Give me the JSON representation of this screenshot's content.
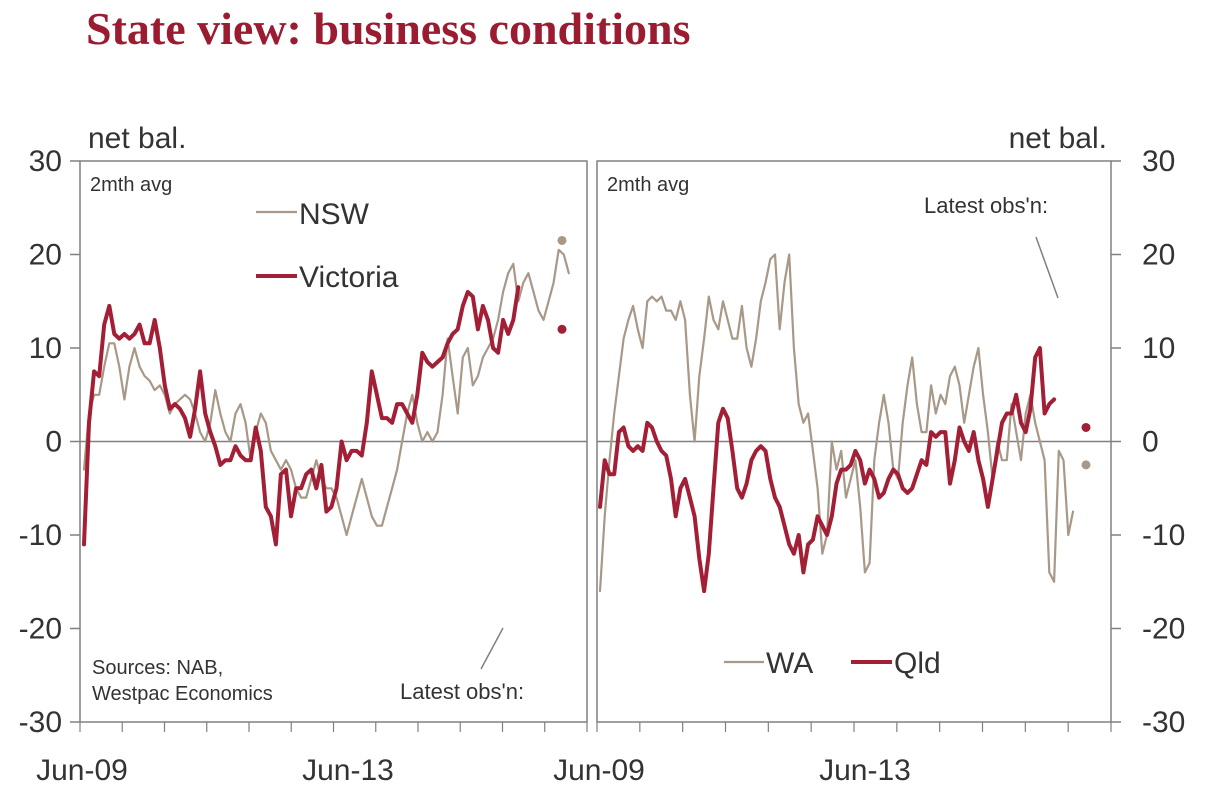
{
  "title": "State view: business conditions",
  "colors": {
    "title": "#9b1b30",
    "vic_qld": "#a31f35",
    "nsw_wa": "#a89888",
    "axis": "#808080",
    "text": "#333333"
  },
  "chart_data": [
    {
      "type": "line",
      "panel": "left",
      "note": "2mth avg",
      "ylabel": "net bal.",
      "ylim": [
        -30,
        30
      ],
      "yticks": [
        "30",
        "20",
        "10",
        "0",
        "-10",
        "-20",
        "-30"
      ],
      "xticks": [
        "Jun-09",
        "Jun-13"
      ],
      "source": "Sources: NAB,\nWestpac Economics",
      "latest_label": "Latest obs'n:",
      "series": [
        {
          "name": "NSW",
          "color": "#a89888",
          "latest": 21.5,
          "values": [
            -3,
            3,
            5,
            5,
            8,
            10.5,
            10.5,
            8,
            4.5,
            8,
            10,
            8,
            7,
            6.5,
            5.5,
            6,
            5,
            3,
            4,
            4.5,
            5,
            4.5,
            3,
            1,
            0,
            2,
            5.5,
            3,
            1,
            0,
            3,
            4,
            2,
            -2,
            1,
            3,
            2,
            -1,
            -2,
            -3,
            -2,
            -3,
            -5,
            -6,
            -6,
            -4,
            -2,
            -4,
            -5,
            -5,
            -6,
            -8,
            -10,
            -8,
            -6,
            -4,
            -6,
            -8,
            -9,
            -9,
            -7,
            -5,
            -3,
            0,
            3,
            5,
            2,
            0,
            1,
            0,
            1,
            5,
            11,
            7,
            3,
            9,
            10,
            6,
            7,
            9,
            10,
            11,
            13,
            16,
            18,
            19,
            15,
            17,
            18,
            16,
            14,
            13,
            15,
            17,
            20.5,
            20,
            18
          ]
        },
        {
          "name": "Victoria",
          "color": "#a31f35",
          "latest": 12,
          "values": [
            -11,
            2,
            7.5,
            7,
            12.5,
            14.5,
            11.5,
            11,
            11.5,
            11,
            11.5,
            12.5,
            10.5,
            10.5,
            13,
            10,
            6,
            3.5,
            4,
            3.5,
            2.5,
            0.5,
            3.5,
            7.5,
            3,
            1,
            -0.5,
            -2.5,
            -2,
            -2,
            -0.5,
            -1.5,
            -2,
            -2,
            1.5,
            -1,
            -7,
            -8,
            -11,
            -3.5,
            -3,
            -8,
            -5,
            -5,
            -3.5,
            -3,
            -5,
            -2.5,
            -7.5,
            -7,
            -5,
            0,
            -2,
            -1,
            -1,
            -1.5,
            2,
            7.5,
            5,
            2.5,
            2.5,
            2,
            4,
            4,
            3,
            2,
            5,
            9.5,
            8.5,
            8,
            8.5,
            9,
            10.5,
            11.5,
            12,
            14.5,
            16,
            15.5,
            12,
            14.5,
            13,
            10,
            9.5,
            13,
            11.5,
            13,
            16.5
          ]
        }
      ]
    },
    {
      "type": "line",
      "panel": "right",
      "note": "2mth avg",
      "ylabel": "net bal.",
      "ylim": [
        -30,
        30
      ],
      "yticks": [
        "30",
        "20",
        "10",
        "0",
        "-10",
        "-20",
        "-30"
      ],
      "xticks": [
        "Jun-09",
        "Jun-13"
      ],
      "latest_label": "Latest obs'n:",
      "series": [
        {
          "name": "WA",
          "color": "#a89888",
          "latest": -2.5,
          "values": [
            -16,
            -8,
            -2,
            3,
            7,
            11,
            13,
            14.5,
            12,
            10,
            15,
            15.5,
            15,
            15.5,
            14,
            14,
            13,
            15,
            13,
            5,
            0,
            7,
            11,
            15.5,
            13,
            12,
            15,
            13,
            11,
            11,
            14.5,
            10,
            8,
            11,
            15,
            17,
            19.5,
            20,
            12,
            17,
            20,
            10,
            4,
            2,
            3,
            -1,
            -5,
            -12,
            -10,
            0,
            -3,
            -1,
            -6,
            -4,
            -2,
            -7,
            -14,
            -13,
            -2,
            2,
            5,
            2,
            -3,
            -4,
            2,
            6,
            9,
            4,
            1,
            1,
            6,
            3,
            5,
            4,
            7,
            8,
            6,
            2,
            5,
            8,
            10,
            5,
            1,
            -4,
            0,
            -2,
            -2,
            4,
            1,
            -2,
            3,
            5,
            2,
            0,
            -2,
            -14,
            -15,
            -1,
            -2,
            -10,
            -7.5
          ]
        },
        {
          "name": "Qld",
          "color": "#a31f35",
          "latest": 1.5,
          "values": [
            -7,
            -2,
            -3.5,
            -3.5,
            1,
            1.5,
            -0.5,
            -1,
            -0.5,
            -1,
            2,
            1.5,
            0,
            -1,
            -1.5,
            -4,
            -8,
            -5,
            -4,
            -6,
            -8,
            -12.5,
            -16,
            -12,
            -5,
            2,
            3.5,
            2.5,
            -1,
            -5,
            -6,
            -4.5,
            -2,
            -1,
            -0.5,
            -1,
            -4,
            -6,
            -7,
            -9,
            -11,
            -12,
            -10,
            -14,
            -11,
            -10.5,
            -8,
            -9,
            -10,
            -8,
            -4.5,
            -3,
            -3,
            -2.5,
            -1,
            -2,
            -4.5,
            -3,
            -4,
            -6,
            -5.5,
            -4,
            -3,
            -3.5,
            -5,
            -5.5,
            -5,
            -3.5,
            -2,
            -2.5,
            1,
            0.5,
            1,
            1,
            -4.5,
            -2,
            1.5,
            0,
            -1,
            1,
            -2,
            -4,
            -7,
            -4,
            -1,
            2,
            3,
            3,
            5,
            2,
            1,
            3.5,
            9,
            10,
            3,
            4,
            4.5
          ]
        }
      ]
    }
  ]
}
